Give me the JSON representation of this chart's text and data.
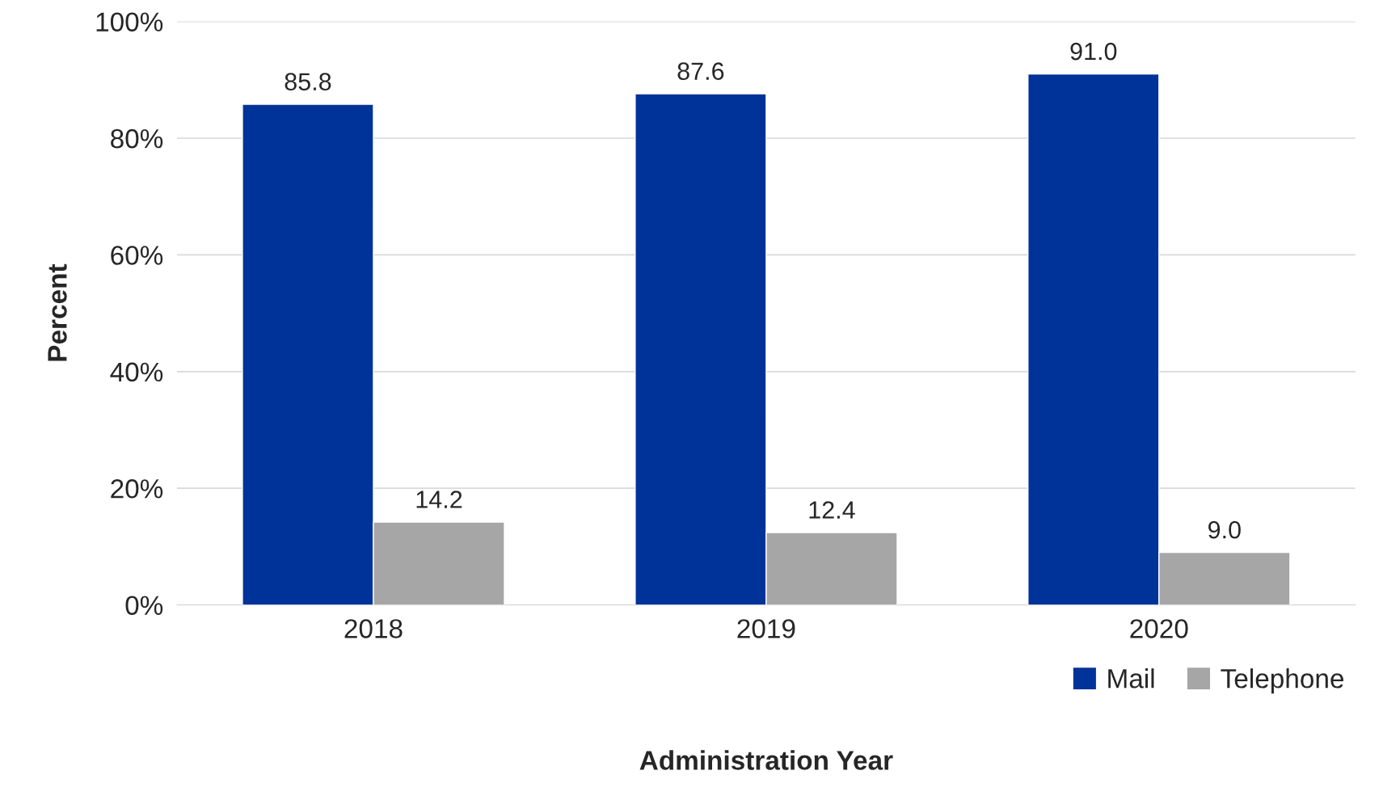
{
  "chart_data": {
    "type": "bar",
    "xlabel": "Administration Year",
    "ylabel": "Percent",
    "categories": [
      "2018",
      "2019",
      "2020"
    ],
    "series": [
      {
        "name": "Mail",
        "color": "#003399",
        "values": [
          85.8,
          87.6,
          91.0
        ],
        "value_labels": [
          "85.8",
          "87.6",
          "91.0"
        ]
      },
      {
        "name": "Telephone",
        "color": "#a6a6a6",
        "values": [
          14.2,
          12.4,
          9.0
        ],
        "value_labels": [
          "14.2",
          "12.4",
          "9.0"
        ]
      }
    ],
    "ylim": [
      0,
      100
    ],
    "yticks": [
      {
        "value": 0,
        "label": "0%"
      },
      {
        "value": 20,
        "label": "20%"
      },
      {
        "value": 40,
        "label": "40%"
      },
      {
        "value": 60,
        "label": "60%"
      },
      {
        "value": 80,
        "label": "80%"
      },
      {
        "value": 100,
        "label": "100%"
      }
    ],
    "grid": "y",
    "legend": "bottom right"
  }
}
